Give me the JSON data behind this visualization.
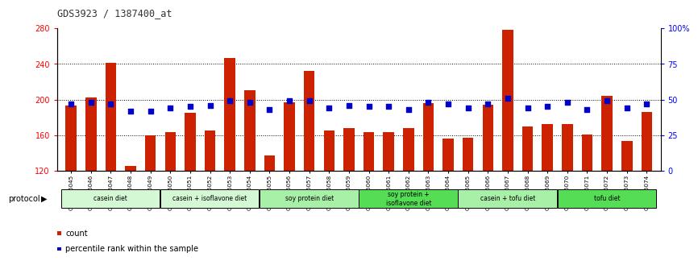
{
  "title": "GDS3923 / 1387400_at",
  "samples": [
    "GSM586045",
    "GSM586046",
    "GSM586047",
    "GSM586048",
    "GSM586049",
    "GSM586050",
    "GSM586051",
    "GSM586052",
    "GSM586053",
    "GSM586054",
    "GSM586055",
    "GSM586056",
    "GSM586057",
    "GSM586058",
    "GSM586059",
    "GSM586060",
    "GSM586061",
    "GSM586062",
    "GSM586063",
    "GSM586064",
    "GSM586065",
    "GSM586066",
    "GSM586067",
    "GSM586068",
    "GSM586069",
    "GSM586070",
    "GSM586071",
    "GSM586072",
    "GSM586073",
    "GSM586074"
  ],
  "count_values": [
    193,
    202,
    241,
    125,
    160,
    163,
    185,
    165,
    247,
    210,
    137,
    197,
    232,
    165,
    168,
    163,
    163,
    168,
    196,
    156,
    157,
    194,
    278,
    170,
    172,
    172,
    161,
    204,
    153,
    186
  ],
  "percentile_values": [
    47,
    48,
    47,
    42,
    42,
    44,
    45,
    46,
    49,
    48,
    43,
    49,
    49,
    44,
    46,
    45,
    45,
    43,
    48,
    47,
    44,
    47,
    51,
    44,
    45,
    48,
    43,
    49,
    44,
    47
  ],
  "groups": [
    {
      "label": "casein diet",
      "start": 0,
      "end": 4,
      "color": "#d4f7d4"
    },
    {
      "label": "casein + isoflavone diet",
      "start": 5,
      "end": 9,
      "color": "#d4f7d4"
    },
    {
      "label": "soy protein diet",
      "start": 10,
      "end": 14,
      "color": "#a8f0a8"
    },
    {
      "label": "soy protein +\nisoflavone diet",
      "start": 15,
      "end": 19,
      "color": "#66dd66"
    },
    {
      "label": "casein + tofu diet",
      "start": 20,
      "end": 24,
      "color": "#a8f0a8"
    },
    {
      "label": "tofu diet",
      "start": 25,
      "end": 29,
      "color": "#66dd66"
    }
  ],
  "ylim_left": [
    120,
    280
  ],
  "ylim_right": [
    0,
    100
  ],
  "yticks_left": [
    120,
    160,
    200,
    240,
    280
  ],
  "yticks_right": [
    0,
    25,
    50,
    75,
    100
  ],
  "ytick_labels_right": [
    "0",
    "25",
    "50",
    "75",
    "100%"
  ],
  "bar_color": "#cc2200",
  "dot_color": "#0000cc",
  "bar_width": 0.55,
  "dot_size": 18,
  "background_color": "#ffffff",
  "plot_bg_color": "#ffffff",
  "protocol_label": "protocol",
  "legend_count_label": "count",
  "legend_percentile_label": "percentile rank within the sample"
}
